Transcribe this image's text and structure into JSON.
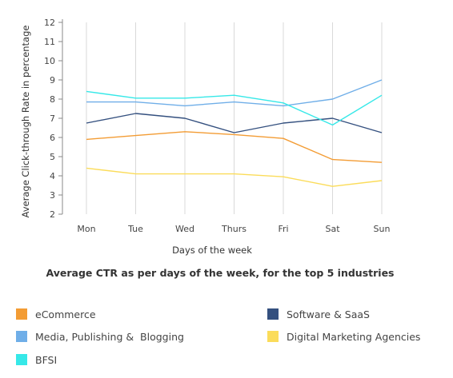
{
  "chart_data": {
    "type": "line",
    "title": "Average CTR as per days of the week, for the top 5 industries",
    "xlabel": "Days of the week",
    "ylabel": "Average Click-through Rate in percentage",
    "categories": [
      "Mon",
      "Tue",
      "Wed",
      "Thurs",
      "Fri",
      "Sat",
      "Sun"
    ],
    "ylim": [
      2,
      12
    ],
    "yticks": [
      2,
      3,
      4,
      5,
      6,
      7,
      8,
      9,
      10,
      11,
      12
    ],
    "grid": "vertical",
    "legend_position": "bottom",
    "series": [
      {
        "name": "eCommerce",
        "color": "#f39c34",
        "values": [
          5.9,
          6.1,
          6.3,
          6.15,
          5.95,
          4.85,
          4.7
        ]
      },
      {
        "name": "Software & SaaS",
        "color": "#34507f",
        "values": [
          6.75,
          7.25,
          7.0,
          6.25,
          6.75,
          7.0,
          6.25
        ]
      },
      {
        "name": "Media, Publishing &  Blogging",
        "color": "#6faee8",
        "values": [
          7.85,
          7.85,
          7.65,
          7.85,
          7.65,
          8.0,
          9.0
        ]
      },
      {
        "name": "Digital Marketing Agencies",
        "color": "#fbdc5a",
        "values": [
          4.4,
          4.1,
          4.1,
          4.1,
          3.95,
          3.45,
          3.75
        ]
      },
      {
        "name": "BFSI",
        "color": "#36e8e8",
        "values": [
          8.4,
          8.05,
          8.05,
          8.2,
          7.8,
          6.65,
          8.2
        ]
      }
    ]
  }
}
